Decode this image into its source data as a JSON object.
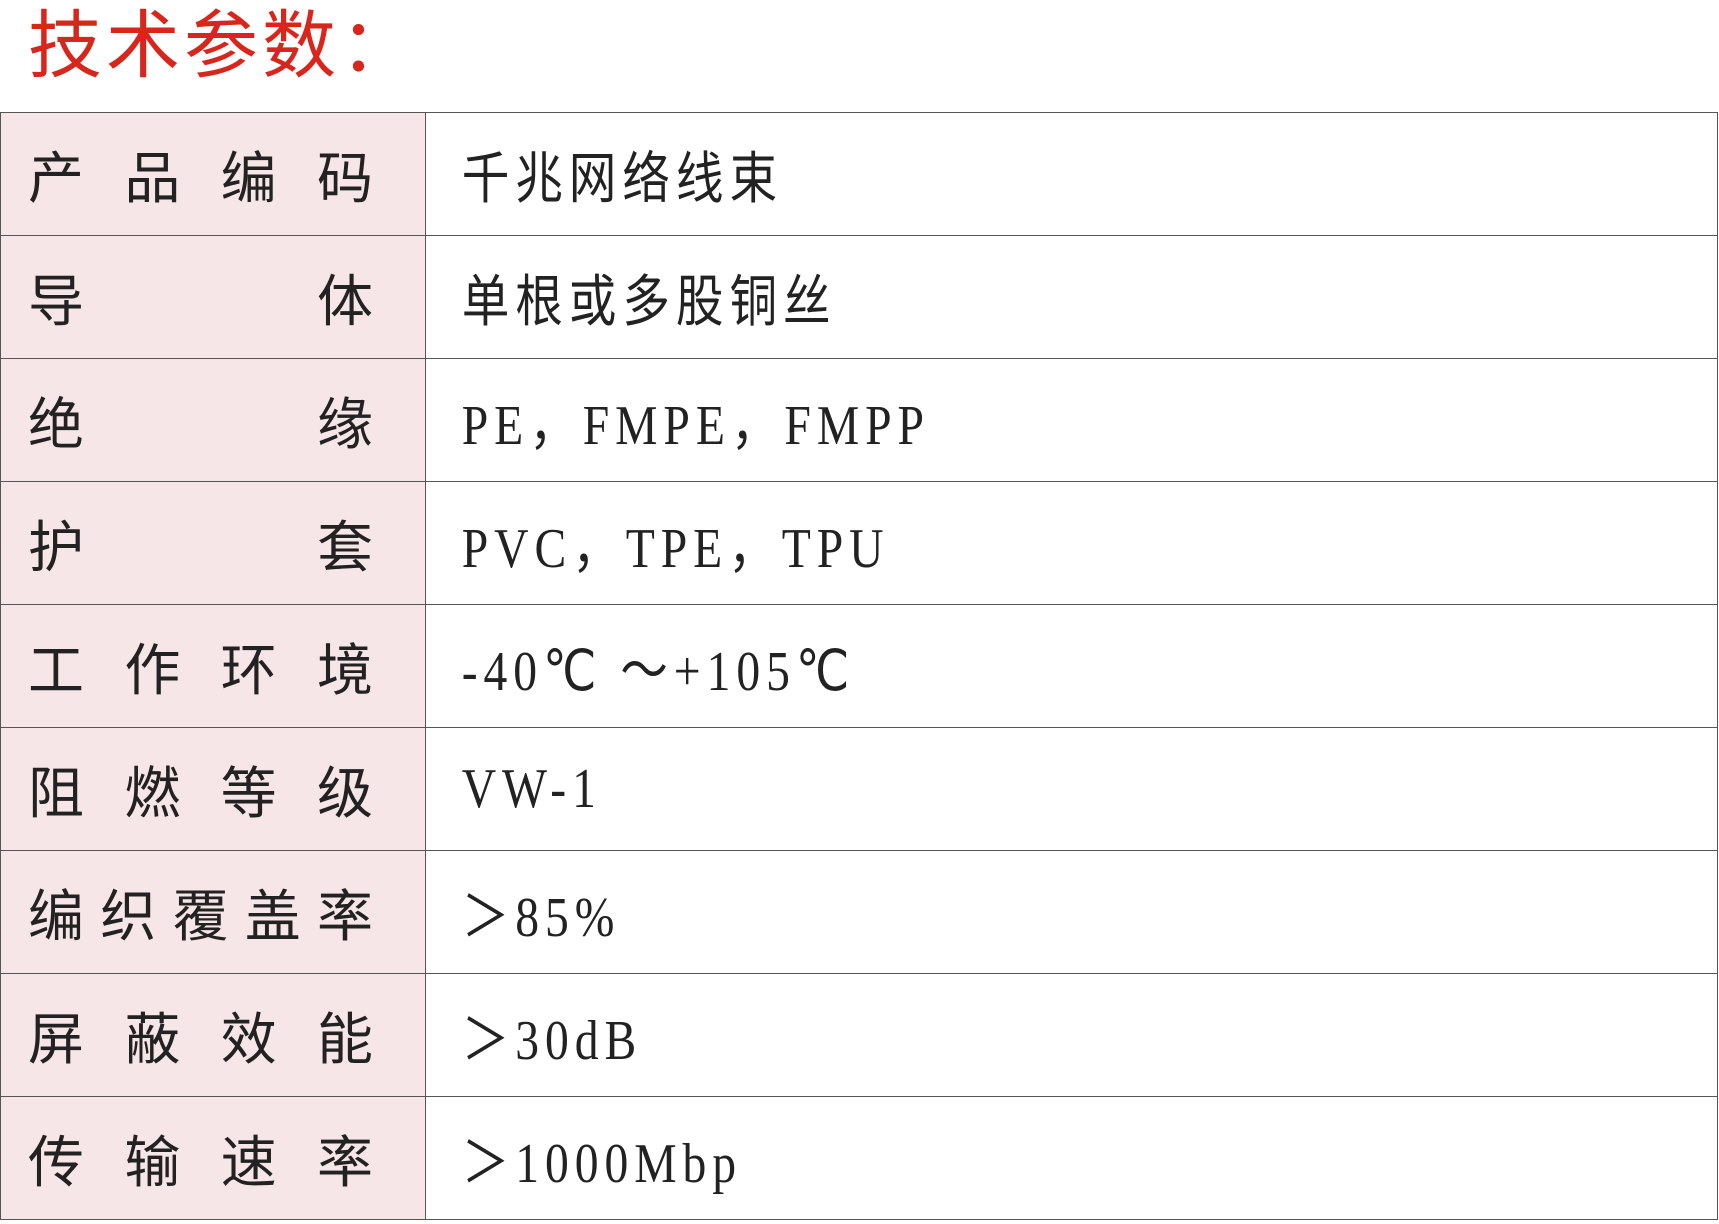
{
  "title": "技术参数：",
  "title_color": "#d9261c",
  "label_bg": "#f7e6e8",
  "rows": [
    {
      "label": "产品编码",
      "value": "千兆网络线束"
    },
    {
      "label": "导体",
      "value": "单根或多股铜丝"
    },
    {
      "label": "绝缘",
      "value": "PE，FMPE，FMPP"
    },
    {
      "label": "护套",
      "value": "PVC，TPE，TPU"
    },
    {
      "label": "工作环境",
      "value": "-40℃ ～+105℃"
    },
    {
      "label": "阻燃等级",
      "value": "VW-1"
    },
    {
      "label": "编织覆盖率",
      "value": "＞85%"
    },
    {
      "label": "屏蔽效能",
      "value": "＞30dB"
    },
    {
      "label": "传输速率",
      "value": "＞1000Mbp"
    }
  ]
}
